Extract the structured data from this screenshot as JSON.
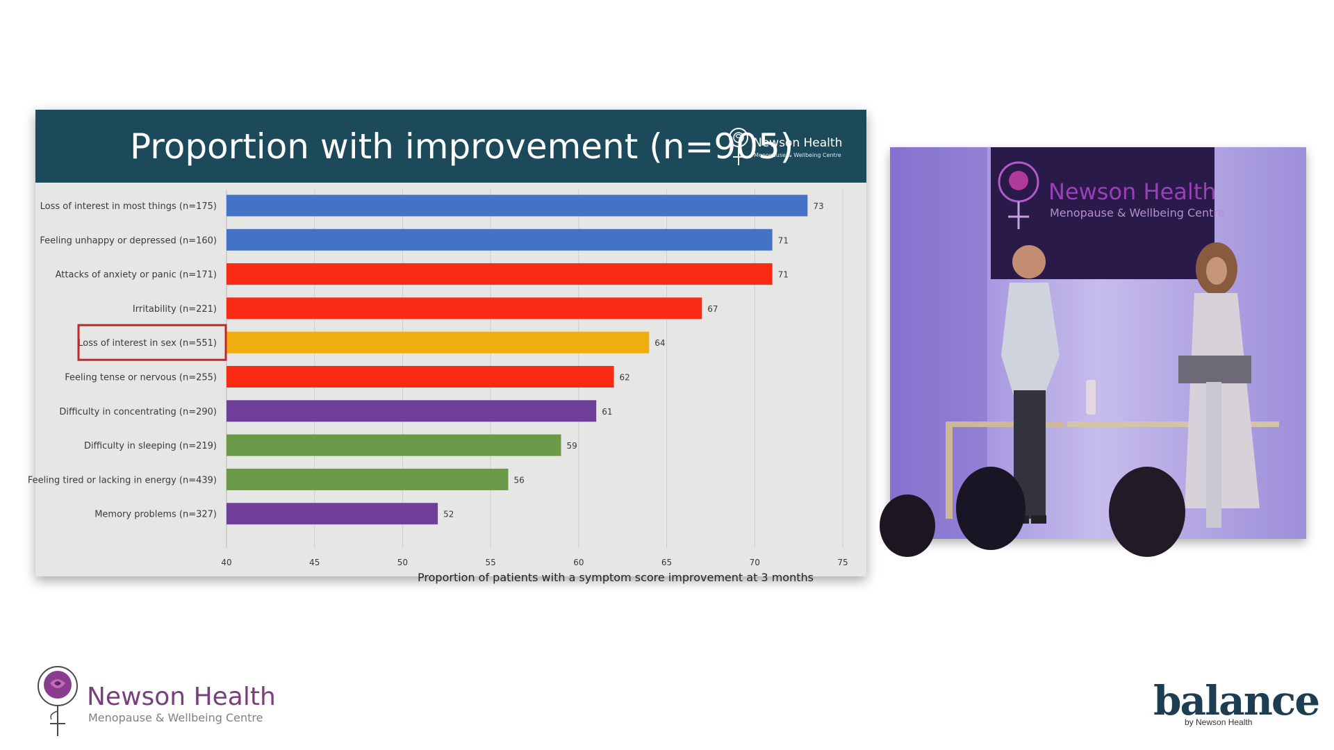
{
  "slide": {
    "title": "Proportion with improvement (n=905)",
    "logo_brand": "Newson Health",
    "logo_subtitle": "Menopause & Wellbeing Centre"
  },
  "chart_data": {
    "type": "bar",
    "orientation": "horizontal",
    "categories": [
      "Loss of interest in most things (n=175)",
      "Feeling unhappy or depressed (n=160)",
      "Attacks of anxiety or panic (n=171)",
      "Irritability (n=221)",
      "Loss of interest in sex (n=551)",
      "Feeling tense or nervous (n=255)",
      "Difficulty in concentrating (n=290)",
      "Difficulty in sleeping (n=219)",
      "Feeling tired or lacking in energy (n=439)",
      "Memory problems (n=327)"
    ],
    "values": [
      73,
      71,
      71,
      67,
      64,
      62,
      61,
      59,
      56,
      52
    ],
    "colors": [
      "#4472c4",
      "#4472c4",
      "#fa2a14",
      "#fa2a14",
      "#f0ad0e",
      "#fa2a14",
      "#6f3f9a",
      "#6a9a48",
      "#6a9a48",
      "#6f3f9a"
    ],
    "highlighted_category": "Loss of interest in sex (n=551)",
    "highlight_color": "#c0262d",
    "xlabel": "Proportion of patients with a symptom score improvement at 3 months",
    "ylabel": "",
    "xlim": [
      40,
      75
    ],
    "xticks": [
      40,
      45,
      50,
      55,
      60,
      65,
      70,
      75
    ],
    "grid": true,
    "legend": false
  },
  "video": {
    "banner_brand": "Newson Health",
    "banner_subtitle": "Menopause & Wellbeing Centre"
  },
  "footer": {
    "brand": "Newson Health",
    "subtitle": "Menopause & Wellbeing Centre",
    "balance_logo": "balance",
    "balance_sub": "by Newson Health"
  },
  "colors": {
    "header_bg": "#1c4a5a",
    "slide_bg": "#e6e6e4",
    "brand_purple": "#7a3d7f",
    "balance_navy": "#1c3d52"
  }
}
